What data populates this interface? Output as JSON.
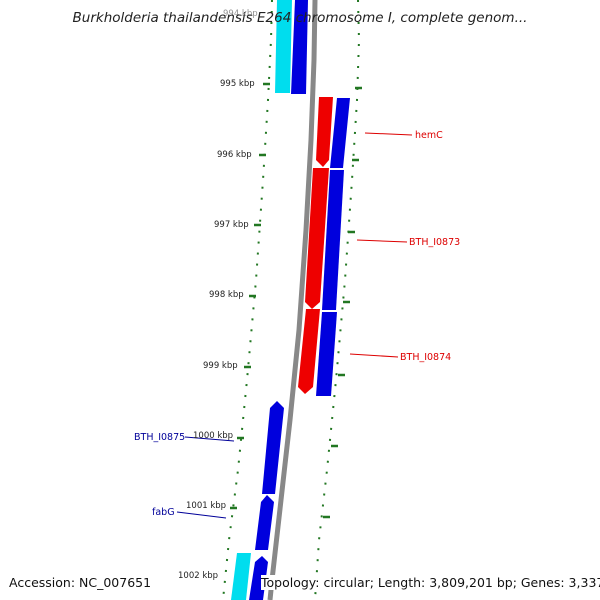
{
  "title": "Burkholderia thailandensis E264 chromosome I, complete genom...",
  "footer": {
    "accession": "Accession: NC_007651",
    "info": "Topology: circular; Length: 3,809,201 bp; Genes: 3,337"
  },
  "ticks": [
    "994 kbp",
    "995 kbp",
    "996 kbp",
    "997 kbp",
    "998 kbp",
    "999 kbp",
    "1000 kbp",
    "1001 kbp",
    "1002 kbp"
  ],
  "genes_outer": [
    {
      "name": "hemC",
      "color": "#dd0000"
    },
    {
      "name": "BTH_I0873",
      "color": "#dd0000"
    },
    {
      "name": "BTH_I0874",
      "color": "#dd0000"
    }
  ],
  "genes_inner": [
    {
      "name": "BTH_I0875",
      "color": "#000099"
    },
    {
      "name": "fabG",
      "color": "#000099"
    }
  ],
  "colors": {
    "forward_cds": "#0000dd",
    "reverse_cds": "#ee0000",
    "rna": "#00ddee",
    "backbone": "#888888",
    "gc_dots": "#227722"
  }
}
